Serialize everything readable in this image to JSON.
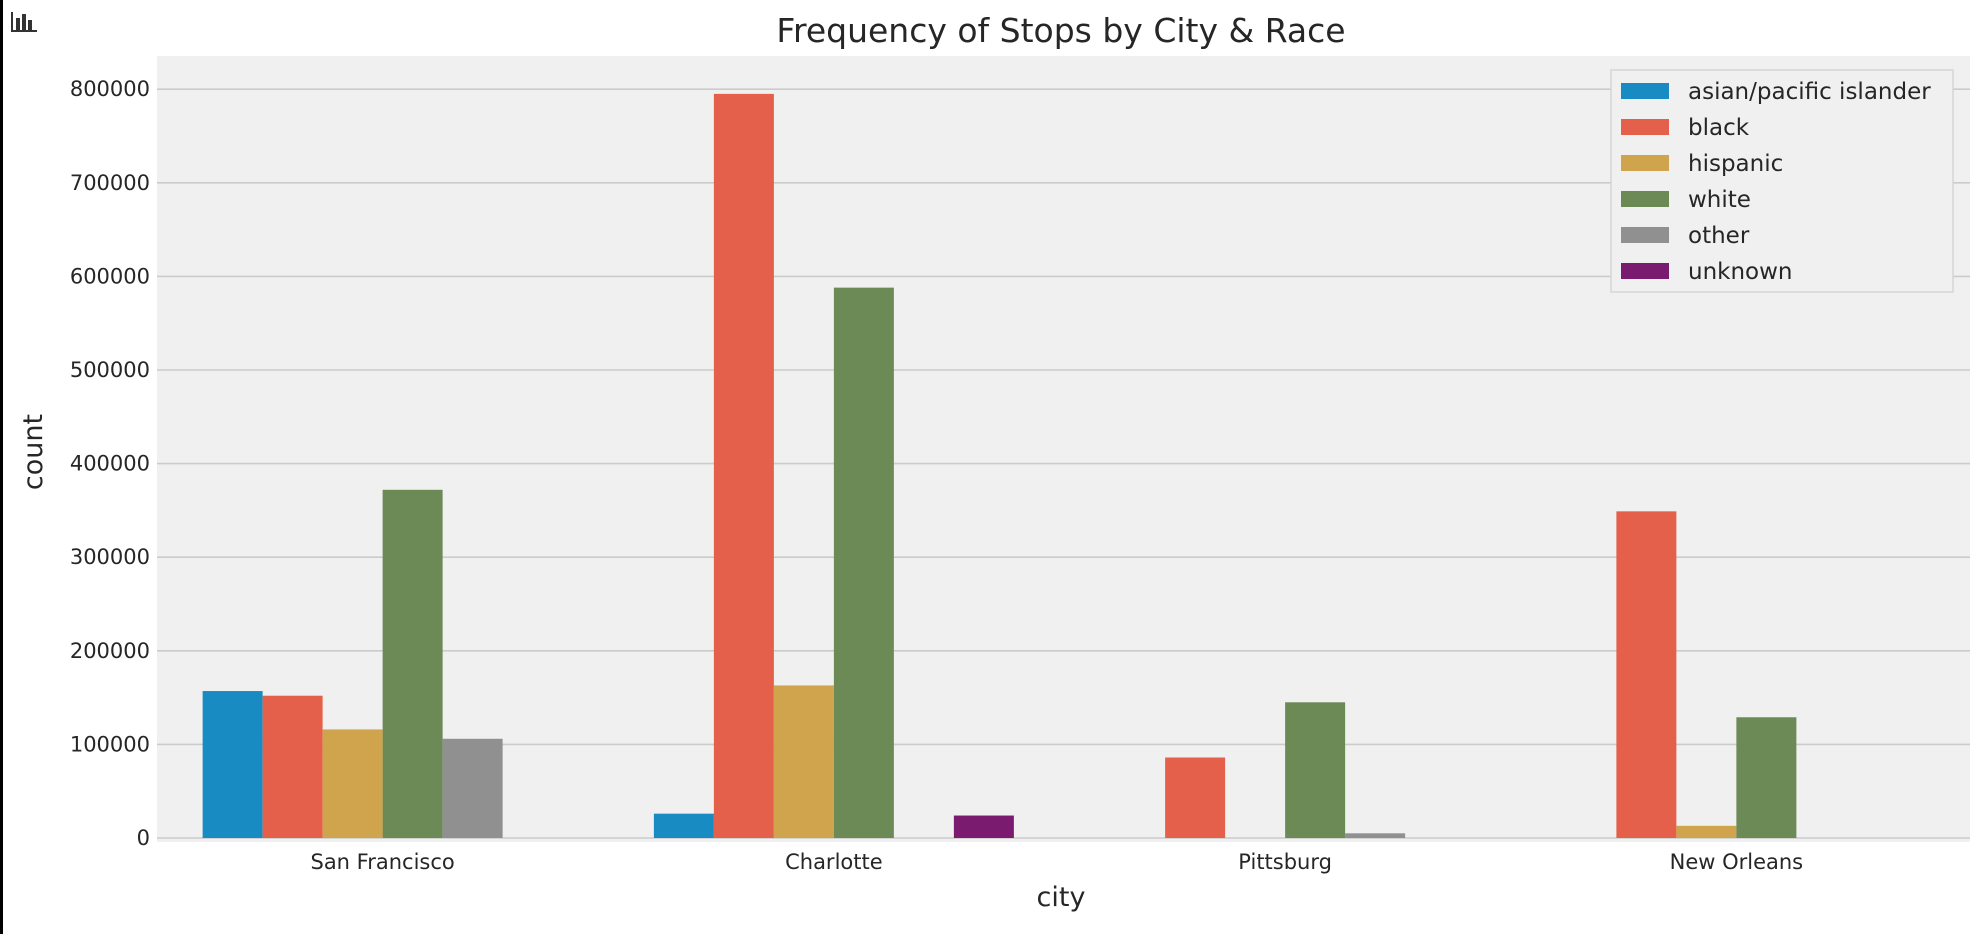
{
  "colors": {
    "plot_background": "#f0f0f0",
    "grid": "#cbcbcb",
    "text": "#262626"
  },
  "chart_data": {
    "type": "bar",
    "title": "Frequency of Stops by City & Race",
    "xlabel": "city",
    "ylabel": "count",
    "ylim": [
      0,
      840000
    ],
    "yticks": [
      0,
      100000,
      200000,
      300000,
      400000,
      500000,
      600000,
      700000,
      800000
    ],
    "ytick_labels": [
      "0",
      "100000",
      "200000",
      "300000",
      "400000",
      "500000",
      "600000",
      "700000",
      "800000"
    ],
    "grid": true,
    "legend_position": "top-right",
    "categories": [
      "San Francisco",
      "Charlotte",
      "Pittsburg",
      "New Orleans"
    ],
    "series": [
      {
        "name": "asian/pacific islander",
        "color": "#188bc2",
        "values": [
          157000,
          26000,
          0,
          0
        ]
      },
      {
        "name": "black",
        "color": "#e5604a",
        "values": [
          152000,
          795000,
          86000,
          349000
        ]
      },
      {
        "name": "hispanic",
        "color": "#d0a44c",
        "values": [
          116000,
          163000,
          0,
          13000
        ]
      },
      {
        "name": "white",
        "color": "#6c8a56",
        "values": [
          372000,
          588000,
          145000,
          129000
        ]
      },
      {
        "name": "other",
        "color": "#909090",
        "values": [
          106000,
          0,
          5000,
          0
        ]
      },
      {
        "name": "unknown",
        "color": "#7a1b6f",
        "values": [
          0,
          24000,
          0,
          0
        ]
      }
    ]
  }
}
